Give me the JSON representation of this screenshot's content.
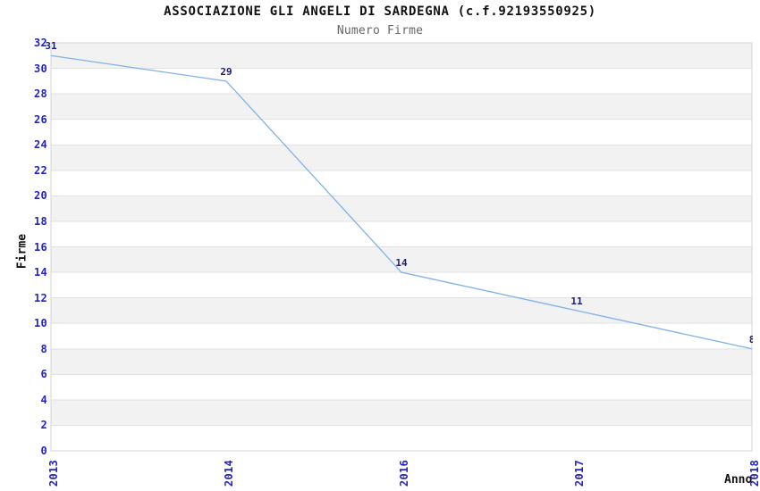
{
  "chart_data": {
    "type": "line",
    "title": "ASSOCIAZIONE GLI ANGELI DI SARDEGNA (c.f.92193550925)",
    "subtitle": "Numero Firme",
    "xlabel": "Anno",
    "ylabel": "Firme",
    "categories": [
      "2013",
      "2014",
      "2016",
      "2017",
      "2018"
    ],
    "series": [
      {
        "name": "Numero Firme",
        "values": [
          31,
          29,
          14,
          11,
          8
        ]
      }
    ],
    "data_labels": [
      "31",
      "29",
      "14",
      "11",
      "8"
    ],
    "ylim": [
      0,
      32
    ],
    "ytick_step": 2,
    "grid": true,
    "legend_position": "none",
    "band_style": "alternating-horizontal",
    "colors": {
      "line": "#7fb2e8",
      "tick_label": "#2222cc",
      "data_label": "#1b1b78",
      "band": "#f2f2f2",
      "gridline": "#e2e2e2",
      "plot_border": "#d4d4d4",
      "title": "#111111",
      "subtitle": "#666666",
      "background": "#ffffff"
    }
  }
}
